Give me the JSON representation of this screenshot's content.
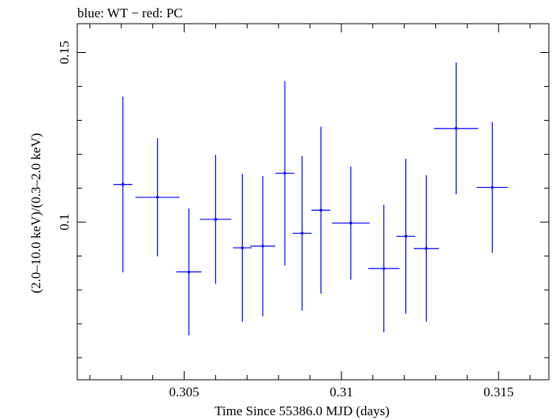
{
  "chart_data": {
    "type": "scatter",
    "title": "blue: WT − red: PC",
    "xlabel": "Time Since 55386.0 MJD (days)",
    "ylabel": "(2.0–10.0 keV)/(0.3–2.0 keV)",
    "xlim": [
      0.3016,
      0.3166
    ],
    "ylim": [
      0.0535,
      0.1585
    ],
    "x_ticks": [
      {
        "value": 0.305,
        "label": "0.305"
      },
      {
        "value": 0.31,
        "label": "0.31"
      },
      {
        "value": 0.315,
        "label": "0.315"
      }
    ],
    "y_ticks": [
      {
        "value": 0.1,
        "label": "0.1"
      },
      {
        "value": 0.15,
        "label": "0.15"
      }
    ],
    "series": [
      {
        "color": "#0000ff",
        "points": [
          {
            "x": 0.30305,
            "xerr": 0.0003,
            "y": 0.1111,
            "yerr": 0.0259
          },
          {
            "x": 0.30415,
            "xerr": 0.0007,
            "y": 0.1073,
            "yerr": 0.0174
          },
          {
            "x": 0.30515,
            "xerr": 0.0004,
            "y": 0.0853,
            "yerr": 0.0187
          },
          {
            "x": 0.306,
            "xerr": 0.0005,
            "y": 0.1008,
            "yerr": 0.019
          },
          {
            "x": 0.30685,
            "xerr": 0.0003,
            "y": 0.0924,
            "yerr": 0.0218
          },
          {
            "x": 0.3075,
            "xerr": 0.0004,
            "y": 0.0929,
            "yerr": 0.0207
          },
          {
            "x": 0.3082,
            "xerr": 0.0003,
            "y": 0.1144,
            "yerr": 0.0272
          },
          {
            "x": 0.30875,
            "xerr": 0.0003,
            "y": 0.0967,
            "yerr": 0.0228
          },
          {
            "x": 0.30935,
            "xerr": 0.0003,
            "y": 0.1035,
            "yerr": 0.0246
          },
          {
            "x": 0.3103,
            "xerr": 0.0006,
            "y": 0.0997,
            "yerr": 0.0167
          },
          {
            "x": 0.31135,
            "xerr": 0.0005,
            "y": 0.0863,
            "yerr": 0.0188
          },
          {
            "x": 0.31205,
            "xerr": 0.0003,
            "y": 0.0958,
            "yerr": 0.0229
          },
          {
            "x": 0.3127,
            "xerr": 0.0004,
            "y": 0.0922,
            "yerr": 0.0216
          },
          {
            "x": 0.31365,
            "xerr": 0.0007,
            "y": 0.1276,
            "yerr": 0.0194
          },
          {
            "x": 0.3148,
            "xerr": 0.0005,
            "y": 0.1102,
            "yerr": 0.0193
          }
        ]
      }
    ]
  }
}
